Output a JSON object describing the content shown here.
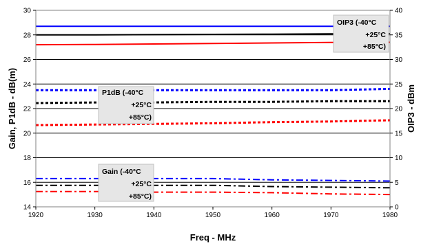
{
  "chart_data": {
    "type": "line",
    "xlabel": "Freq - MHz",
    "ylabel": "Gain, P1dB - dB(m)",
    "y2label": "OIP3 - dBm",
    "xlim": [
      1920,
      1980
    ],
    "ylim": [
      14,
      30
    ],
    "y2lim": [
      0,
      40
    ],
    "x_ticks": [
      "1920",
      "1930",
      "1940",
      "1950",
      "1960",
      "1970",
      "1980"
    ],
    "y_ticks": [
      "14",
      "16",
      "18",
      "20",
      "22",
      "24",
      "26",
      "28",
      "30"
    ],
    "y2_ticks": [
      "0",
      "5",
      "10",
      "15",
      "20",
      "25",
      "30",
      "35",
      "40"
    ],
    "grid": true,
    "series": [
      {
        "group": "OIP3",
        "axis": "right",
        "style": "solid",
        "color": "#0000ff",
        "x": [
          1920,
          1930,
          1940,
          1950,
          1960,
          1970,
          1980
        ],
        "y": [
          36.75,
          36.75,
          36.75,
          36.75,
          36.75,
          36.75,
          36.75
        ]
      },
      {
        "group": "OIP3",
        "axis": "right",
        "style": "solid",
        "color": "#000000",
        "x": [
          1920,
          1930,
          1940,
          1950,
          1960,
          1970,
          1980
        ],
        "y": [
          35.0,
          35.0,
          35.05,
          35.1,
          35.15,
          35.2,
          35.25
        ]
      },
      {
        "group": "OIP3",
        "axis": "right",
        "style": "solid",
        "color": "#ff0000",
        "x": [
          1920,
          1930,
          1940,
          1950,
          1960,
          1970,
          1980
        ],
        "y": [
          33.0,
          33.05,
          33.15,
          33.25,
          33.35,
          33.45,
          33.5
        ]
      },
      {
        "group": "P1dB",
        "axis": "left",
        "style": "dot",
        "color": "#0000ff",
        "x": [
          1920,
          1930,
          1940,
          1950,
          1960,
          1970,
          1975,
          1980
        ],
        "y": [
          23.5,
          23.5,
          23.5,
          23.5,
          23.5,
          23.5,
          23.55,
          23.6
        ]
      },
      {
        "group": "P1dB",
        "axis": "left",
        "style": "dot",
        "color": "#000000",
        "x": [
          1920,
          1930,
          1940,
          1950,
          1960,
          1970,
          1980
        ],
        "y": [
          22.45,
          22.5,
          22.5,
          22.55,
          22.55,
          22.6,
          22.6
        ]
      },
      {
        "group": "P1dB",
        "axis": "left",
        "style": "dot",
        "color": "#ff0000",
        "x": [
          1920,
          1930,
          1940,
          1950,
          1960,
          1970,
          1975,
          1980
        ],
        "y": [
          20.65,
          20.7,
          20.75,
          20.8,
          20.9,
          20.95,
          21.0,
          21.05
        ]
      },
      {
        "group": "Gain",
        "axis": "left",
        "style": "dashdot",
        "color": "#0000ff",
        "x": [
          1920,
          1930,
          1940,
          1950,
          1955,
          1960,
          1970,
          1980
        ],
        "y": [
          16.3,
          16.3,
          16.3,
          16.3,
          16.25,
          16.2,
          16.15,
          16.1
        ]
      },
      {
        "group": "Gain",
        "axis": "left",
        "style": "dashdot",
        "color": "#000000",
        "x": [
          1920,
          1930,
          1940,
          1950,
          1955,
          1960,
          1970,
          1980
        ],
        "y": [
          15.75,
          15.75,
          15.75,
          15.75,
          15.7,
          15.65,
          15.6,
          15.55
        ]
      },
      {
        "group": "Gain",
        "axis": "left",
        "style": "dashdot",
        "color": "#ff0000",
        "x": [
          1920,
          1930,
          1940,
          1950,
          1960,
          1970,
          1980
        ],
        "y": [
          15.25,
          15.25,
          15.2,
          15.2,
          15.15,
          15.05,
          15.0
        ]
      }
    ],
    "legends": [
      {
        "label": "OIP3 (-40°C",
        "entries": [
          "+25°C",
          "+85°C)"
        ]
      },
      {
        "label": "P1dB (-40°C",
        "entries": [
          "+25°C",
          "+85°C)"
        ]
      },
      {
        "label": "Gain (-40°C",
        "entries": [
          "+25°C",
          "+85°C)"
        ]
      }
    ]
  }
}
